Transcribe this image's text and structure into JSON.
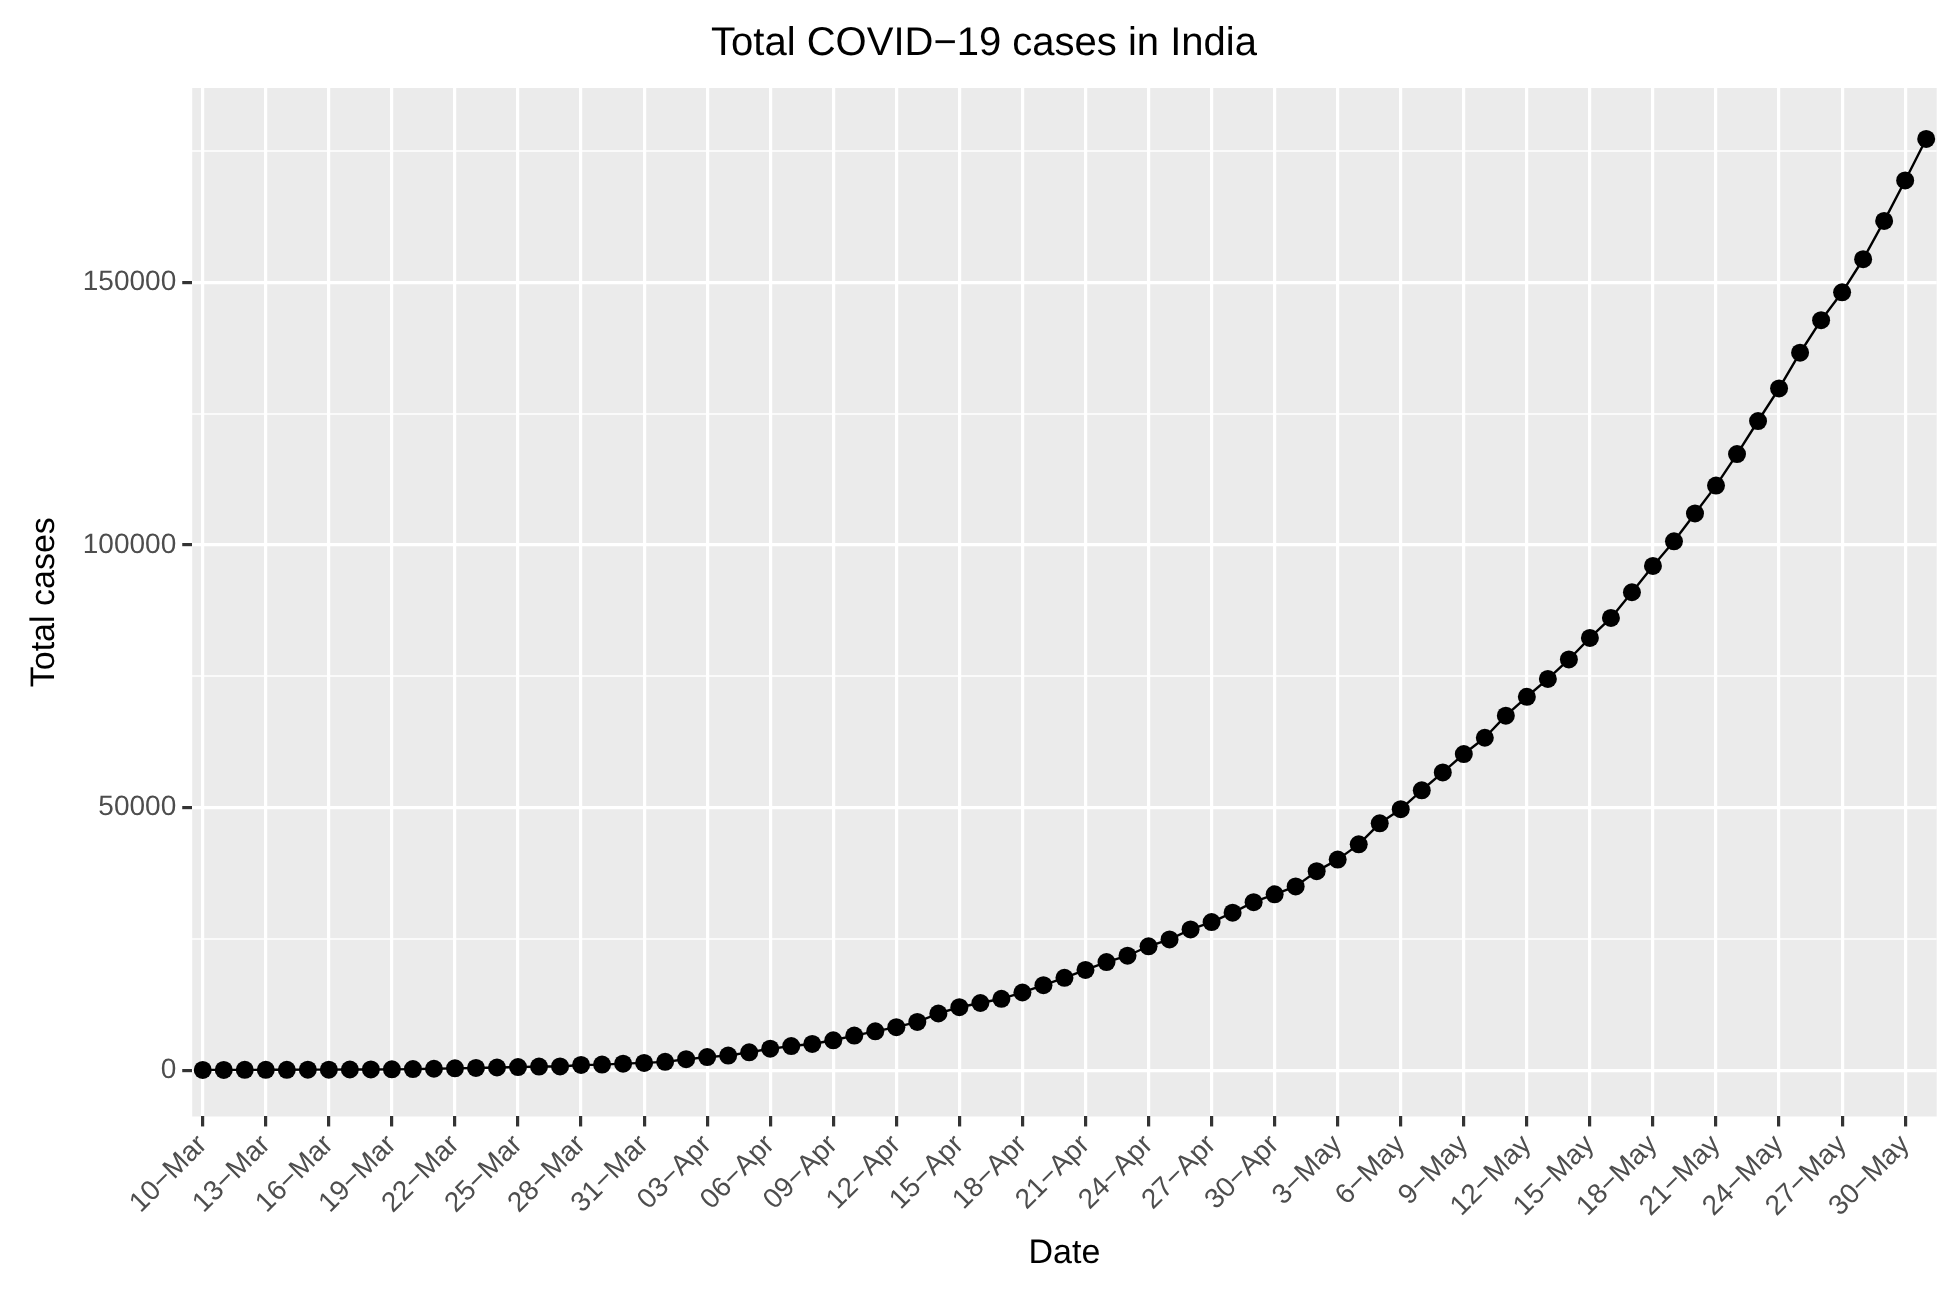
{
  "chart_data": {
    "type": "line",
    "title": "Total COVID−19 cases in India",
    "xlabel": "Date",
    "ylabel": "Total cases",
    "categories": [
      "10−Mar",
      null,
      null,
      "13−Mar",
      null,
      null,
      "16−Mar",
      null,
      null,
      "19−Mar",
      null,
      null,
      "22−Mar",
      null,
      null,
      "25−Mar",
      null,
      null,
      "28−Mar",
      null,
      null,
      "31−Mar",
      null,
      null,
      "03−Apr",
      null,
      null,
      "06−Apr",
      null,
      null,
      "09−Apr",
      null,
      null,
      "12−Apr",
      null,
      null,
      "15−Apr",
      null,
      null,
      "18−Apr",
      null,
      null,
      "21−Apr",
      null,
      null,
      "24−Apr",
      null,
      null,
      "27−Apr",
      null,
      null,
      "30−Apr",
      null,
      null,
      "3−May",
      null,
      null,
      "6−May",
      null,
      null,
      "9−May",
      null,
      null,
      "12−May",
      null,
      null,
      "15−May",
      null,
      null,
      "18−May",
      null,
      null,
      "21−May",
      null,
      null,
      "24−May",
      null,
      null,
      "27−May",
      null,
      null,
      "30−May",
      null
    ],
    "color": "#000000",
    "marker": "circle",
    "line_style": "solid",
    "grid": true,
    "values": [
      60,
      60,
      70,
      80,
      80,
      110,
      110,
      140,
      150,
      170,
      220,
      280,
      360,
      430,
      520,
      600,
      700,
      720,
      1000,
      1070,
      1250,
      1400,
      1600,
      2100,
      2500,
      2800,
      3400,
      4100,
      4600,
      5000,
      5700,
      6600,
      7400,
      8200,
      9200,
      10800,
      12000,
      12800,
      13600,
      14800,
      16200,
      17600,
      19100,
      20600,
      21800,
      23600,
      24900,
      26800,
      28200,
      30000,
      32000,
      33500,
      35000,
      37900,
      40100,
      43000,
      47000,
      49700,
      53300,
      56700,
      60200,
      63300,
      67500,
      71100,
      74500,
      78200,
      82300,
      86100,
      91000,
      96000,
      100700,
      106000,
      111300,
      117300,
      123600,
      129800,
      136600,
      142800,
      148100,
      154400,
      161700,
      169400,
      177300
    ],
    "ylim": [
      -8800,
      187000
    ],
    "yticks": [
      0,
      {
        "value": 25000,
        "label": null
      },
      50000,
      {
        "value": 75000,
        "label": null
      },
      100000,
      {
        "value": 125000,
        "label": null
      },
      150000,
      {
        "value": 175000,
        "label": null
      }
    ]
  }
}
